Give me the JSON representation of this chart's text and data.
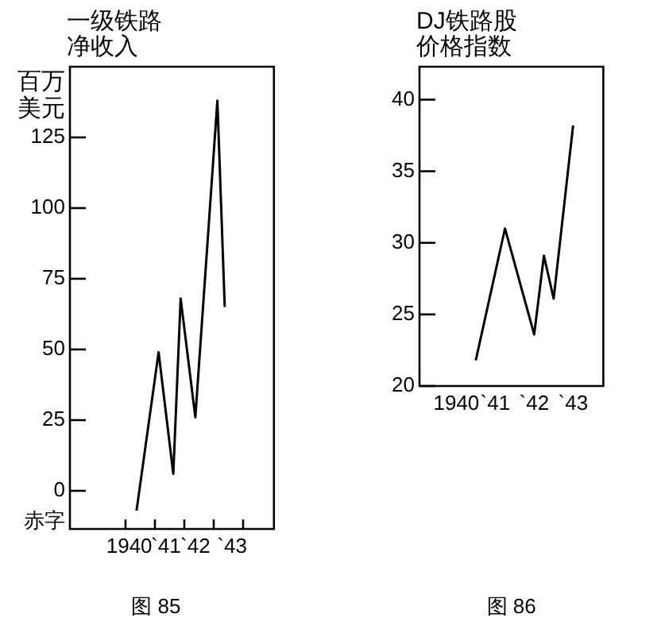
{
  "chart_data": [
    {
      "type": "line",
      "title": "一级铁路净收入",
      "ylabel": "百万美元",
      "annotations": [
        "图 85"
      ],
      "categories": [
        "1940",
        null,
        null,
        null,
        null,
        "`41",
        null,
        null,
        null,
        "`42",
        null,
        null,
        null,
        null,
        "`43",
        null
      ],
      "series": [
        {
          "color": "#000000",
          "values": [
            null,
            -7,
            null,
            null,
            49,
            null,
            6,
            68,
            null,
            26,
            null,
            null,
            138,
            65,
            null,
            null
          ]
        }
      ],
      "ylim": [
        -13.5,
        150
      ],
      "yticks": [
        0,
        25,
        50,
        75,
        100,
        125,
        {
          "value": -11,
          "label": "赤字"
        }
      ]
    },
    {
      "type": "line",
      "title": "DJ铁路股价格指数",
      "annotations": [
        "图 86"
      ],
      "categories": [
        null,
        "1940",
        null,
        null,
        null,
        "`41",
        null,
        null,
        null,
        "`42",
        null,
        null,
        null,
        "`43",
        null,
        null
      ],
      "series": [
        {
          "color": "#000000",
          "values": [
            null,
            null,
            null,
            21.8,
            null,
            null,
            31,
            null,
            null,
            23.6,
            29.1,
            26.1,
            null,
            38.2,
            null,
            null
          ]
        }
      ],
      "ylim": [
        20,
        42.3
      ],
      "yticks": [
        20,
        25,
        30,
        35,
        40
      ]
    }
  ]
}
